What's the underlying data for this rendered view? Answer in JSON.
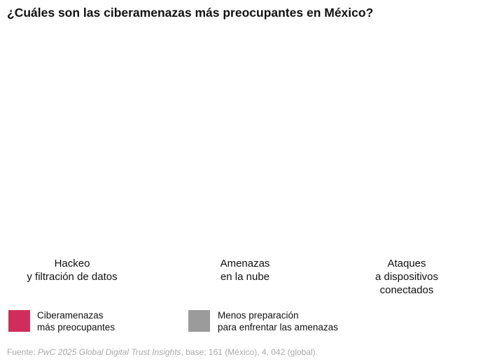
{
  "title": "¿Cuáles son las ciberamenazas más preocupantes en México?",
  "categories": [
    "Hackeo\ny filtración de datos",
    "Amenazas\nen la nube",
    "Ataques\na dispositivos\nconectados"
  ],
  "legend": [
    {
      "label": "Ciberamenazas\nmás preocupantes",
      "color": "#d12d5c"
    },
    {
      "label": "Menos preparación\npara enfrentar las amenazas",
      "color": "#9b9b9b"
    }
  ],
  "source": {
    "prefix": "Fuente: ",
    "publication": "PwC 2025 Global Digital Trust Insights",
    "suffix": ", base: 161 (México), 4, 042 (global)."
  }
}
